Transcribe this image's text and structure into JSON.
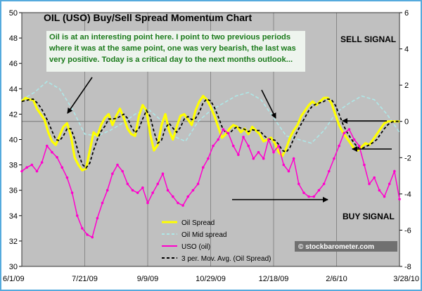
{
  "chart_data": {
    "type": "line",
    "title": "OIL (USO) Buy/Sell Spread Momentum Chart",
    "x_ticks": [
      "6/1/09",
      "7/21/09",
      "9/9/09",
      "10/29/09",
      "12/18/09",
      "2/6/10",
      "3/28/10"
    ],
    "y_left": {
      "ticks": [
        30,
        32,
        34,
        36,
        38,
        40,
        42,
        44,
        46,
        48,
        50
      ],
      "range": [
        30,
        50
      ]
    },
    "y_right": {
      "ticks": [
        -8,
        -6,
        -4,
        -2,
        0,
        2,
        4,
        6
      ],
      "range": [
        -8,
        6
      ]
    },
    "annotations": {
      "note": "Oil is at an interesting point here.  I point to two previous periods where it was at the same point, one was very bearish, the last was very positive.  Today is a critical day to the next months outlook...",
      "sell_signal": "SELL SIGNAL",
      "buy_signal": "BUY SIGNAL",
      "watermark": "© stockbarometer.com"
    },
    "x_index_range": [
      0,
      300
    ],
    "series": [
      {
        "name": "Oil Spread",
        "axis": "right",
        "color": "#ffff00",
        "x": [
          0,
          3,
          6,
          9,
          12,
          15,
          18,
          21,
          24,
          27,
          30,
          33,
          36,
          39,
          42,
          45,
          48,
          51,
          54,
          57,
          60,
          63,
          66,
          69,
          72,
          75,
          78,
          81,
          84,
          87,
          90,
          93,
          96,
          99,
          102,
          105,
          108,
          111,
          114,
          117,
          120,
          123,
          126,
          129,
          132,
          135,
          138,
          141,
          144,
          147,
          150,
          153,
          156,
          159,
          162,
          165,
          168,
          171,
          174,
          177,
          180,
          183,
          186,
          189,
          192,
          195,
          198,
          201,
          204,
          207,
          210,
          213,
          216,
          219,
          222,
          225,
          228,
          231,
          234,
          237,
          240,
          243,
          246,
          249,
          252,
          255,
          258,
          261,
          264,
          267,
          270,
          273,
          276,
          279,
          282,
          285,
          288,
          291,
          294,
          297,
          300
        ],
        "values": [
          1.1,
          1.3,
          1.2,
          1.2,
          0.7,
          0.4,
          0.1,
          -0.6,
          -1.1,
          -1.3,
          -0.8,
          -0.3,
          -0.1,
          -0.8,
          -2.0,
          -2.4,
          -2.7,
          -2.6,
          -1.6,
          -0.6,
          -0.8,
          -0.2,
          0.2,
          0.4,
          -0.2,
          0.3,
          0.7,
          0.2,
          -0.4,
          -0.7,
          -0.8,
          0.3,
          0.9,
          0.6,
          -0.7,
          -1.6,
          -1.3,
          -0.2,
          0.4,
          -0.5,
          -1.0,
          -0.3,
          0.3,
          0.4,
          0.1,
          -0.2,
          0.6,
          1.1,
          1.4,
          1.2,
          0.8,
          0.3,
          -0.3,
          -0.9,
          -0.7,
          -0.4,
          -0.2,
          -0.3,
          -0.6,
          -0.4,
          -0.7,
          -0.3,
          -0.5,
          -0.7,
          -1.1,
          -1.0,
          -0.9,
          -1.2,
          -1.7,
          -1.9,
          -1.5,
          -0.9,
          -0.5,
          -0.2,
          0.3,
          0.6,
          0.9,
          1.1,
          0.9,
          1.1,
          1.3,
          1.3,
          1.0,
          0.4,
          -0.2,
          -0.6,
          -0.9,
          -1.2,
          -1.5,
          -1.6,
          -1.4,
          -1.2,
          -1.3,
          -1.0,
          -0.7,
          -0.4,
          -0.1,
          0.0,
          0.0,
          0.0,
          0.0
        ]
      },
      {
        "name": "Oil Mid spread",
        "axis": "right",
        "color": "#aee8e8",
        "x": [
          0,
          10,
          20,
          30,
          40,
          50,
          60,
          70,
          80,
          90,
          100,
          110,
          120,
          130,
          140,
          150,
          160,
          170,
          180,
          190,
          200,
          210,
          220,
          230,
          240,
          250,
          260,
          270,
          280,
          290,
          300
        ],
        "values": [
          1.2,
          1.6,
          2.2,
          1.8,
          0.7,
          -0.7,
          -0.8,
          -0.5,
          -0.1,
          0.4,
          0.7,
          0.1,
          -0.8,
          -1.1,
          0.0,
          0.6,
          1.0,
          1.4,
          1.6,
          1.2,
          0.2,
          -0.8,
          -1.0,
          -1.2,
          -0.5,
          0.5,
          1.0,
          1.4,
          1.2,
          0.4,
          -0.6
        ]
      },
      {
        "name": "USO (oil)",
        "axis": "left",
        "color": "#ff00cc",
        "x": [
          0,
          4,
          8,
          12,
          16,
          20,
          24,
          28,
          32,
          36,
          40,
          44,
          48,
          52,
          56,
          60,
          64,
          68,
          72,
          76,
          80,
          84,
          88,
          92,
          96,
          100,
          104,
          108,
          112,
          116,
          120,
          124,
          128,
          132,
          136,
          140,
          144,
          148,
          152,
          156,
          160,
          164,
          168,
          172,
          176,
          180,
          184,
          188,
          192,
          196,
          200,
          204,
          208,
          212,
          216,
          220,
          224,
          228,
          232,
          236,
          240,
          244,
          248,
          252,
          256,
          260,
          264,
          268,
          272,
          276,
          280,
          284,
          288,
          292,
          296,
          300
        ],
        "values": [
          37.5,
          37.8,
          38.0,
          37.5,
          38.2,
          39.5,
          39.0,
          38.6,
          37.8,
          37.0,
          35.8,
          34.0,
          33.0,
          32.5,
          32.3,
          33.8,
          35.0,
          36.0,
          37.3,
          38.0,
          37.5,
          36.5,
          36.0,
          35.8,
          36.2,
          35.0,
          35.8,
          36.5,
          37.3,
          36.0,
          35.5,
          35.0,
          34.8,
          35.5,
          36.0,
          36.5,
          37.8,
          38.5,
          39.5,
          40.0,
          40.8,
          40.5,
          39.5,
          38.8,
          40.2,
          39.5,
          38.5,
          39.0,
          38.5,
          40.0,
          39.0,
          39.5,
          38.0,
          37.5,
          38.5,
          36.5,
          35.8,
          35.5,
          35.5,
          36.0,
          36.5,
          37.5,
          38.5,
          39.5,
          40.5,
          40.8,
          40.0,
          39.5,
          38.0,
          36.5,
          37.0,
          36.0,
          35.5,
          36.5,
          37.5,
          35.3
        ]
      },
      {
        "name": "3 per. Mov. Avg. (Oil Spread)",
        "axis": "right",
        "color": "#000000",
        "dash": true,
        "derived_from": "Oil Spread",
        "window_points": 3
      }
    ],
    "arrows": [
      {
        "label": "",
        "from": [
          131,
          110
        ],
        "to": [
          96,
          161
        ]
      },
      {
        "label": "",
        "from": [
          372,
          128
        ],
        "to": [
          392,
          168
        ]
      },
      {
        "label": "",
        "from": [
          550,
          172
        ],
        "to": [
          487,
          172
        ]
      },
      {
        "label": "",
        "from": [
          557,
          212
        ],
        "to": [
          501,
          212
        ]
      },
      {
        "label": "",
        "from": [
          330,
          284
        ],
        "to": [
          466,
          284
        ]
      }
    ],
    "colors": {
      "plot_background": "#c0c0c0",
      "gridline": "#888888",
      "note_text": "#1a7a1a",
      "note_background": "#eef4ee",
      "frame_border": "#55aadd"
    },
    "grid": true,
    "legend_position": "bottom-left of plot"
  }
}
